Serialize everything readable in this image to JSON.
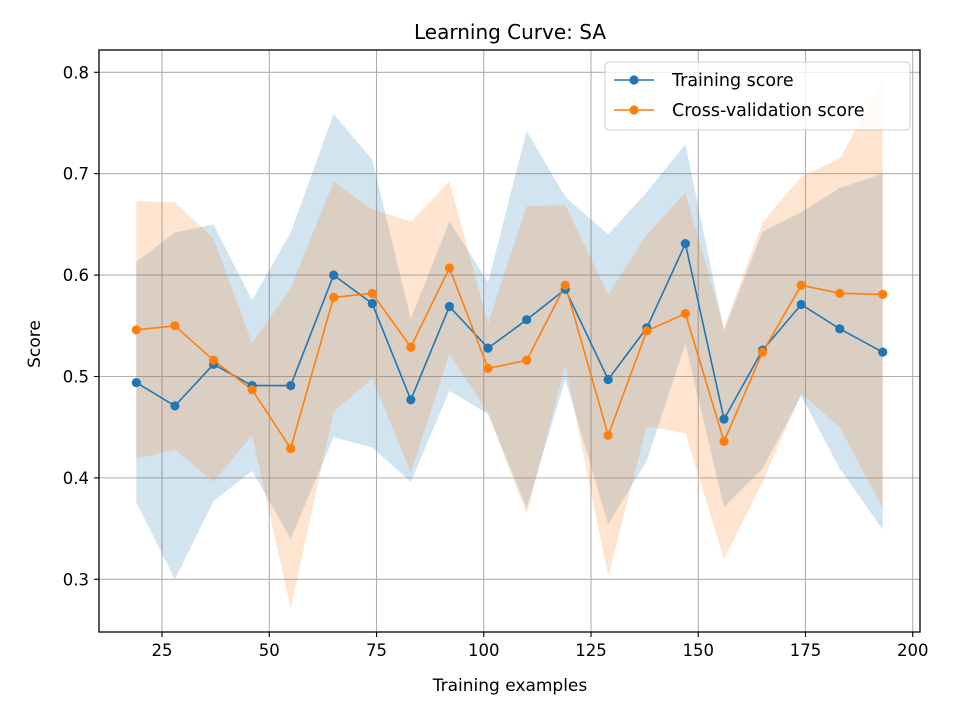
{
  "chart_data": {
    "type": "line",
    "title": "Learning Curve: SA",
    "xlabel": "Training examples",
    "ylabel": "Score",
    "xlim": [
      10.3,
      201.7
    ],
    "ylim": [
      0.248,
      0.822
    ],
    "grid": true,
    "legend_position": "top-right",
    "x_ticks": [
      25,
      50,
      75,
      100,
      125,
      150,
      175,
      200
    ],
    "y_ticks": [
      0.3,
      0.4,
      0.5,
      0.6,
      0.7,
      0.8
    ],
    "x_tick_labels": [
      "25",
      "50",
      "75",
      "100",
      "125",
      "150",
      "175",
      "200"
    ],
    "y_tick_labels": [
      "0.3",
      "0.4",
      "0.5",
      "0.6",
      "0.7",
      "0.8"
    ],
    "x": [
      19,
      28,
      37,
      46,
      55,
      65,
      74,
      83,
      92,
      101,
      110,
      119,
      129,
      138,
      147,
      156,
      165,
      174,
      183,
      193
    ],
    "series": [
      {
        "name": "Training score",
        "color": "#1f77b4",
        "mean": [
          0.494,
          0.471,
          0.512,
          0.491,
          0.491,
          0.6,
          0.572,
          0.477,
          0.569,
          0.528,
          0.556,
          0.586,
          0.497,
          0.548,
          0.631,
          0.458,
          0.526,
          0.571,
          0.547,
          0.524
        ],
        "upper": [
          0.613,
          0.642,
          0.65,
          0.575,
          0.642,
          0.759,
          0.714,
          0.557,
          0.653,
          0.593,
          0.742,
          0.677,
          0.64,
          0.682,
          0.729,
          0.545,
          0.643,
          0.662,
          0.686,
          0.7
        ],
        "lower": [
          0.376,
          0.3,
          0.377,
          0.407,
          0.34,
          0.44,
          0.43,
          0.396,
          0.486,
          0.463,
          0.37,
          0.497,
          0.354,
          0.417,
          0.532,
          0.371,
          0.409,
          0.481,
          0.409,
          0.349
        ]
      },
      {
        "name": "Cross-validation score",
        "color": "#ff7f0e",
        "mean": [
          0.546,
          0.55,
          0.516,
          0.487,
          0.429,
          0.578,
          0.582,
          0.529,
          0.607,
          0.508,
          0.516,
          0.59,
          0.442,
          0.545,
          0.562,
          0.436,
          0.524,
          0.59,
          0.582,
          0.581
        ],
        "upper": [
          0.673,
          0.672,
          0.636,
          0.533,
          0.587,
          0.692,
          0.665,
          0.653,
          0.692,
          0.552,
          0.668,
          0.669,
          0.581,
          0.64,
          0.681,
          0.548,
          0.652,
          0.697,
          0.715,
          0.792
        ],
        "lower": [
          0.419,
          0.428,
          0.396,
          0.442,
          0.271,
          0.465,
          0.498,
          0.405,
          0.522,
          0.464,
          0.364,
          0.511,
          0.303,
          0.451,
          0.444,
          0.32,
          0.396,
          0.483,
          0.45,
          0.37
        ]
      }
    ]
  }
}
